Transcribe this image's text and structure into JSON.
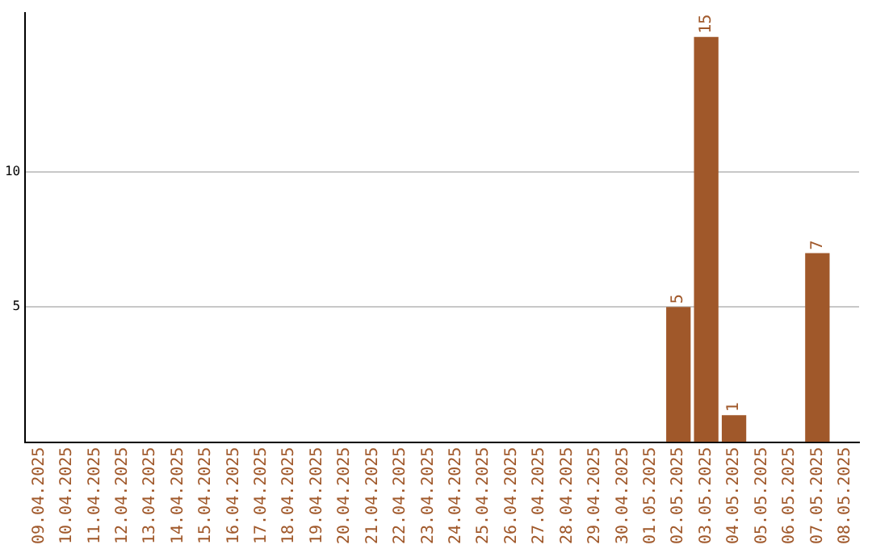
{
  "chart_data": {
    "type": "bar",
    "categories": [
      "09.04.2025",
      "10.04.2025",
      "11.04.2025",
      "12.04.2025",
      "13.04.2025",
      "14.04.2025",
      "15.04.2025",
      "16.04.2025",
      "17.04.2025",
      "18.04.2025",
      "19.04.2025",
      "20.04.2025",
      "21.04.2025",
      "22.04.2025",
      "23.04.2025",
      "24.04.2025",
      "25.04.2025",
      "26.04.2025",
      "27.04.2025",
      "28.04.2025",
      "29.04.2025",
      "30.04.2025",
      "01.05.2025",
      "02.05.2025",
      "03.05.2025",
      "04.05.2025",
      "05.05.2025",
      "06.05.2025",
      "07.05.2025",
      "08.05.2025"
    ],
    "values": [
      0,
      0,
      0,
      0,
      0,
      0,
      0,
      0,
      0,
      0,
      0,
      0,
      0,
      0,
      0,
      0,
      0,
      0,
      0,
      0,
      0,
      0,
      0,
      5,
      15,
      1,
      0,
      0,
      7,
      0
    ],
    "value_labels": [
      null,
      null,
      null,
      null,
      null,
      null,
      null,
      null,
      null,
      null,
      null,
      null,
      null,
      null,
      null,
      null,
      null,
      null,
      null,
      null,
      null,
      null,
      null,
      "5",
      "15",
      "1",
      null,
      null,
      "7",
      null
    ],
    "color": "#a0582a",
    "ylim": [
      0,
      15.9
    ],
    "yticks": [
      5,
      10
    ],
    "grid": "y"
  }
}
